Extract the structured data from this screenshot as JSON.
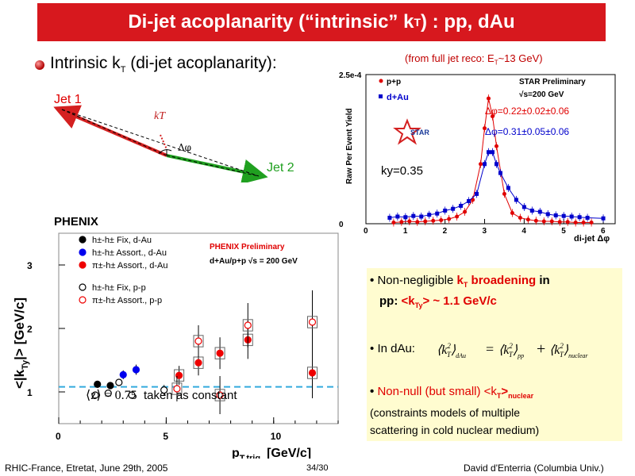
{
  "header": {
    "title_main": "Di-jet acoplanarity (“intrinsic” k",
    "title_sub": "T",
    "title_tail": ") : pp, dAu"
  },
  "subtitle": {
    "text_main": "Intrinsic k",
    "text_sub": "T",
    "text_tail": " (di-jet acoplanarity):"
  },
  "diagram": {
    "jet1": "Jet 1",
    "jet2": "Jet 2",
    "kt": "kT",
    "dphi": "Δφ"
  },
  "top_note": {
    "main": "(from full jet reco: E",
    "sub": "T",
    "tail": "~13 GeV)"
  },
  "ky_note": "ky=0.35",
  "z_note": {
    "expr": "⟨z⟩ = 0.75",
    "tail": "taken as constant"
  },
  "bullets": {
    "b1_line1_a": "Non-negligible ",
    "b1_line1_red": "k",
    "b1_line1_red_sub": "T",
    "b1_line1_red_tail": " broadening",
    "b1_line1_b": " in",
    "b1_line2_a": "pp: ",
    "b1_line2_red": "<k",
    "b1_line2_red_sub": "Ty",
    "b1_line2_red_tail": "> ~ 1.1 GeV/c",
    "b2_label": "In dAu:",
    "b3_red": "Non-null (but small) <k",
    "b3_red_sub": "T",
    "b3_red_tail": ">",
    "b3_red_sub2": "nuclear",
    "b4_line1": "(constraints models of multiple",
    "b4_line2": "scattering in cold nuclear medium)"
  },
  "footer": {
    "left": "RHIC-France, Etretat, June 29th, 2005",
    "page": "34/30",
    "right": "David d'Enterria (Columbia Univ.)"
  },
  "colors": {
    "title_bg": "#d7181e",
    "bullet_box": "#fffcd0",
    "accent_red": "#e00000"
  },
  "chart_data": [
    {
      "type": "scatter",
      "title": "",
      "logo": "PHENIX",
      "annotation_1": "PHENIX Preliminary",
      "annotation_2": "d+Au/p+p √s = 200 GeV",
      "xlabel": "p",
      "xlabel_sub": "T,trig",
      "xlabel_unit": "[GeV/c]",
      "ylabel": "<|k",
      "ylabel_sub": "Ty",
      "ylabel_tail": "|>  [GeV/c]",
      "xlim": [
        0,
        13
      ],
      "ylim": [
        0.5,
        3.5
      ],
      "x_ticks": [
        0,
        5,
        10
      ],
      "y_ticks": [
        1,
        2,
        3
      ],
      "reference_line": 1.08,
      "legend_position": "top-left",
      "series": [
        {
          "name": "h±-h± Fix, d-Au",
          "color": "#000000",
          "filled": true,
          "box": false,
          "x": [
            1.8,
            2.4
          ],
          "y": [
            1.12,
            1.1
          ],
          "err": [
            0.05,
            0.05
          ]
        },
        {
          "name": "h±-h± Assort., d-Au",
          "color": "#0000ee",
          "filled": true,
          "box": false,
          "x": [
            3.0,
            3.6
          ],
          "y": [
            1.27,
            1.35
          ],
          "err": [
            0.07,
            0.08
          ]
        },
        {
          "name": "π±-h± Assort., d-Au",
          "color": "#ee0000",
          "filled": true,
          "box": true,
          "x": [
            5.6,
            6.5,
            7.5,
            8.8,
            11.8
          ],
          "y": [
            1.26,
            1.46,
            1.61,
            1.82,
            1.3
          ],
          "err": [
            0.15,
            0.2,
            0.25,
            0.3,
            0.4
          ]
        },
        {
          "name": "h±-h± Fix, p-p",
          "color": "#000000",
          "filled": false,
          "box": false,
          "x": [
            1.7,
            2.3,
            2.8,
            3.4,
            4.9
          ],
          "y": [
            0.95,
            0.98,
            1.15,
            0.95,
            1.03
          ],
          "err": [
            0.05,
            0.05,
            0.05,
            0.05,
            0.08
          ]
        },
        {
          "name": "π±-h± Assort., p-p",
          "color": "#ee0000",
          "filled": false,
          "box": true,
          "x": [
            5.5,
            6.5,
            7.5,
            8.8,
            11.8
          ],
          "y": [
            1.05,
            1.8,
            0.95,
            2.05,
            2.1
          ],
          "err": [
            0.2,
            0.25,
            0.3,
            0.35,
            0.5
          ]
        }
      ]
    },
    {
      "type": "scatter",
      "title": "",
      "logo": "STAR",
      "annotation_1": "STAR Preliminary",
      "annotation_2": "√s=200 GeV",
      "xlabel": "di-jet Δφ",
      "ylabel": "Raw Per Event Yield",
      "xlim": [
        0,
        6.3
      ],
      "ylim": [
        0,
        0.00025
      ],
      "x_ticks": [
        0,
        1,
        2,
        3,
        4,
        5,
        6
      ],
      "y_tick_labels": [
        "0",
        "2.5e-4"
      ],
      "legend_position": "top-left",
      "fit_labels": [
        "Δφ=0.22±0.02±0.06",
        "Δφ=0.31±0.05±0.06"
      ],
      "series": [
        {
          "name": "p+p",
          "color": "#e00000",
          "x": [
            0.7,
            0.9,
            1.1,
            1.3,
            1.5,
            1.7,
            1.9,
            2.1,
            2.3,
            2.5,
            2.7,
            2.9,
            3.0,
            3.1,
            3.2,
            3.3,
            3.5,
            3.7,
            3.9,
            4.1,
            4.3,
            4.5,
            4.7,
            4.9,
            5.1,
            5.3,
            5.5,
            5.7
          ],
          "y": [
            2e-06,
            3e-06,
            4e-06,
            3e-06,
            4e-06,
            5e-06,
            6e-06,
            8e-06,
            1.2e-05,
            2e-05,
            4e-05,
            0.0001,
            0.00016,
            0.00021,
            0.00018,
            0.00013,
            5e-05,
            1.8e-05,
            1e-05,
            7e-06,
            5e-06,
            4e-06,
            4e-06,
            3e-06,
            3e-06,
            2e-06,
            2e-06,
            2e-06
          ]
        },
        {
          "name": "d+Au",
          "color": "#0000cc",
          "x": [
            0.6,
            0.8,
            1.0,
            1.2,
            1.4,
            1.6,
            1.8,
            2.0,
            2.2,
            2.4,
            2.6,
            2.8,
            3.0,
            3.1,
            3.2,
            3.3,
            3.4,
            3.6,
            3.8,
            4.0,
            4.2,
            4.4,
            4.6,
            4.8,
            5.0,
            5.2,
            5.4,
            5.6,
            6.0
          ],
          "y": [
            1e-05,
            1.2e-05,
            1.1e-05,
            1.3e-05,
            1.2e-05,
            1.5e-05,
            1.7e-05,
            2.2e-05,
            2.5e-05,
            3e-05,
            3.8e-05,
            5e-05,
            0.0001,
            0.00012,
            0.00012,
            0.0001,
            8.5e-05,
            6e-05,
            4e-05,
            2.8e-05,
            2.2e-05,
            2e-05,
            1.6e-05,
            1.4e-05,
            1.3e-05,
            1.2e-05,
            1.1e-05,
            1e-05,
            9e-06
          ]
        }
      ]
    }
  ]
}
